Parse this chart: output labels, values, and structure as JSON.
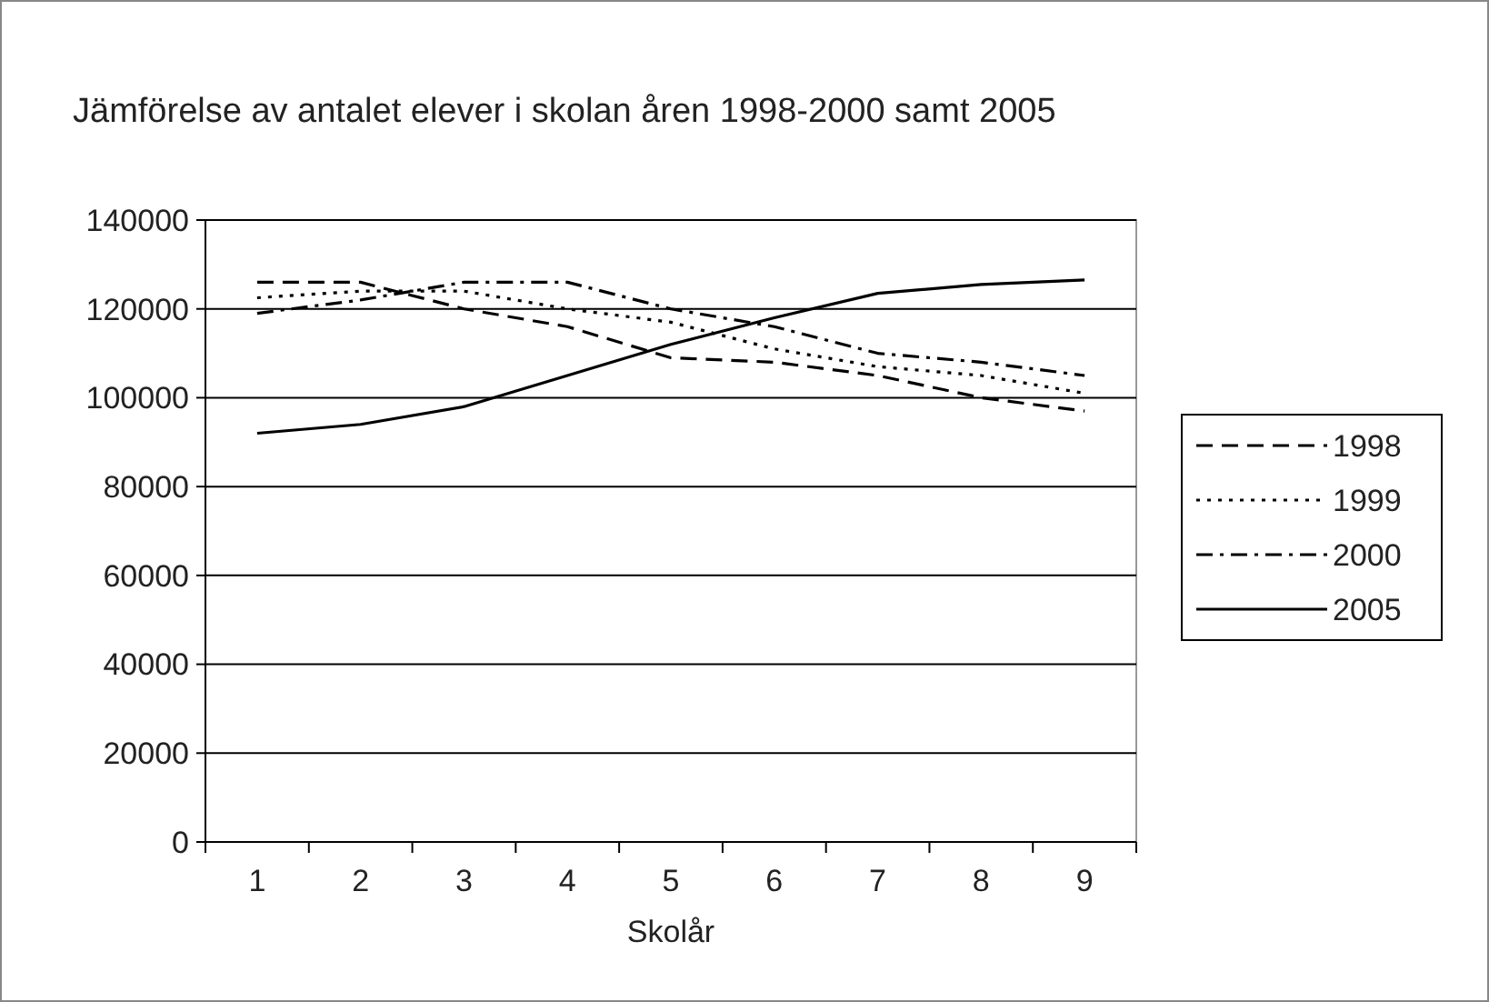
{
  "chart_data": {
    "type": "line",
    "title": "Jämförelse av antalet elever i skolan åren 1998-2000 samt 2005",
    "xlabel": "Skolår",
    "categories": [
      "1",
      "2",
      "3",
      "4",
      "5",
      "6",
      "7",
      "8",
      "9"
    ],
    "series": [
      {
        "name": "1998",
        "color": "#000000",
        "line_style": "dashed",
        "values": [
          126000,
          126000,
          120000,
          116000,
          109000,
          108000,
          105000,
          100000,
          97000
        ]
      },
      {
        "name": "1999",
        "color": "#000000",
        "line_style": "dotted",
        "values": [
          122500,
          124000,
          124000,
          120000,
          117000,
          111000,
          107000,
          105000,
          101000
        ]
      },
      {
        "name": "2000",
        "color": "#000000",
        "line_style": "dashdot",
        "values": [
          119000,
          122000,
          126000,
          126000,
          120000,
          116000,
          110000,
          108000,
          105000
        ]
      },
      {
        "name": "2005",
        "color": "#000000",
        "line_style": "solid",
        "values": [
          92000,
          94000,
          98000,
          105000,
          112000,
          118000,
          123500,
          125500,
          126500
        ]
      }
    ],
    "ylim": [
      0,
      140000
    ],
    "yticks": [
      0,
      20000,
      40000,
      60000,
      80000,
      100000,
      120000,
      140000
    ],
    "grid": "y",
    "legend": "right",
    "marker": "none"
  }
}
